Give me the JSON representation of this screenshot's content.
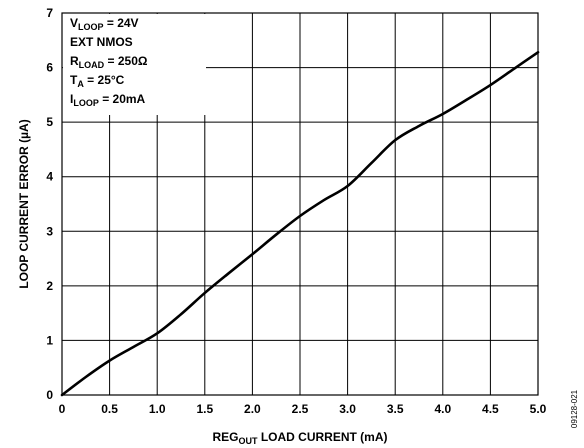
{
  "chart_data": {
    "type": "line",
    "xlabel": {
      "prefix": "REG",
      "sub": "OUT",
      "suffix": " LOAD CURRENT (mA)"
    },
    "ylabel": "LOOP CURRENT ERROR (µA)",
    "xlim": [
      0,
      5.0
    ],
    "ylim": [
      0,
      7
    ],
    "x_ticks": [
      "0",
      "0.5",
      "1.0",
      "1.5",
      "2.0",
      "2.5",
      "3.0",
      "3.5",
      "4.0",
      "4.5",
      "5.0"
    ],
    "y_ticks": [
      "0",
      "1",
      "2",
      "3",
      "4",
      "5",
      "6",
      "7"
    ],
    "grid": true,
    "series": [
      {
        "x": [
          0,
          0.25,
          0.5,
          0.75,
          1.0,
          1.25,
          1.5,
          1.75,
          2.0,
          2.25,
          2.5,
          2.75,
          3.0,
          3.25,
          3.5,
          3.75,
          4.0,
          4.25,
          4.5,
          4.75,
          5.0
        ],
        "y": [
          0,
          0.33,
          0.63,
          0.88,
          1.13,
          1.48,
          1.87,
          2.23,
          2.58,
          2.94,
          3.28,
          3.57,
          3.83,
          4.25,
          4.67,
          4.93,
          5.15,
          5.41,
          5.68,
          5.98,
          6.28
        ]
      }
    ],
    "annotations": [
      {
        "main": "V",
        "sub": "LOOP",
        "rest": " = 24V"
      },
      {
        "main": "EXT NMOS",
        "sub": "",
        "rest": ""
      },
      {
        "main": "R",
        "sub": "LOAD",
        "rest": " = 250Ω"
      },
      {
        "main": "T",
        "sub": "A",
        "rest": " = 25°C"
      },
      {
        "main": "I",
        "sub": "LOOP",
        "rest": " = 20mA"
      }
    ],
    "figure_id": "09128-021"
  }
}
